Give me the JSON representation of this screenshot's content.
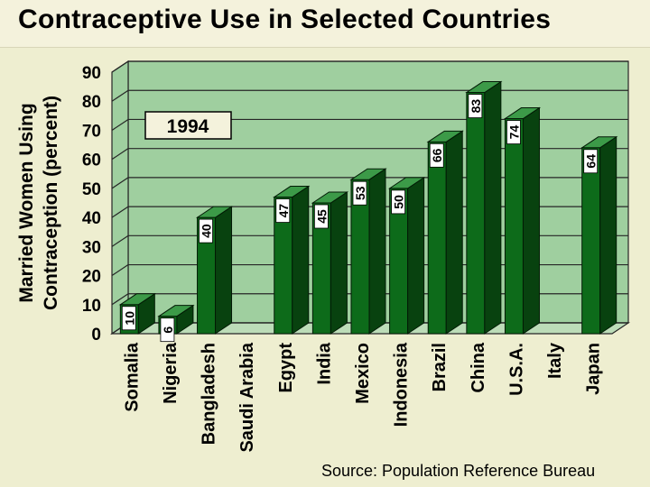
{
  "title": "Contraceptive Use in Selected Countries",
  "chart_data": {
    "type": "bar",
    "title": "Contraceptive Use in Selected Countries",
    "ylabel": [
      "Married Women Using",
      "Contraception (percent)"
    ],
    "xlabel": "",
    "annotation": "1994",
    "source": "Source: Population Reference Bureau",
    "ylim": [
      0,
      90
    ],
    "yticks": [
      "0",
      "10",
      "20",
      "30",
      "40",
      "50",
      "60",
      "70",
      "80",
      "90"
    ],
    "categories": [
      "Somalia",
      "Nigeria",
      "Bangladesh",
      "Saudi Arabia",
      "Egypt",
      "India",
      "Mexico",
      "Indonesia",
      "Brazil",
      "China",
      "U.S.A.",
      "Italy",
      "Japan"
    ],
    "values": [
      10,
      6,
      40,
      null,
      47,
      45,
      53,
      50,
      66,
      83,
      74,
      null,
      64
    ],
    "labels": [
      "10",
      "6",
      "40",
      "",
      "47",
      "45",
      "53",
      "50",
      "66",
      "83",
      "74",
      "",
      "64"
    ],
    "colors": {
      "bar_front": "#0d6b1a",
      "bar_side": "#08420f",
      "bar_top": "#3c9a48",
      "wall": "#9fcf9f",
      "floor": "#bcdcb8",
      "grid": "#262626",
      "background": "#eeeed0"
    }
  }
}
